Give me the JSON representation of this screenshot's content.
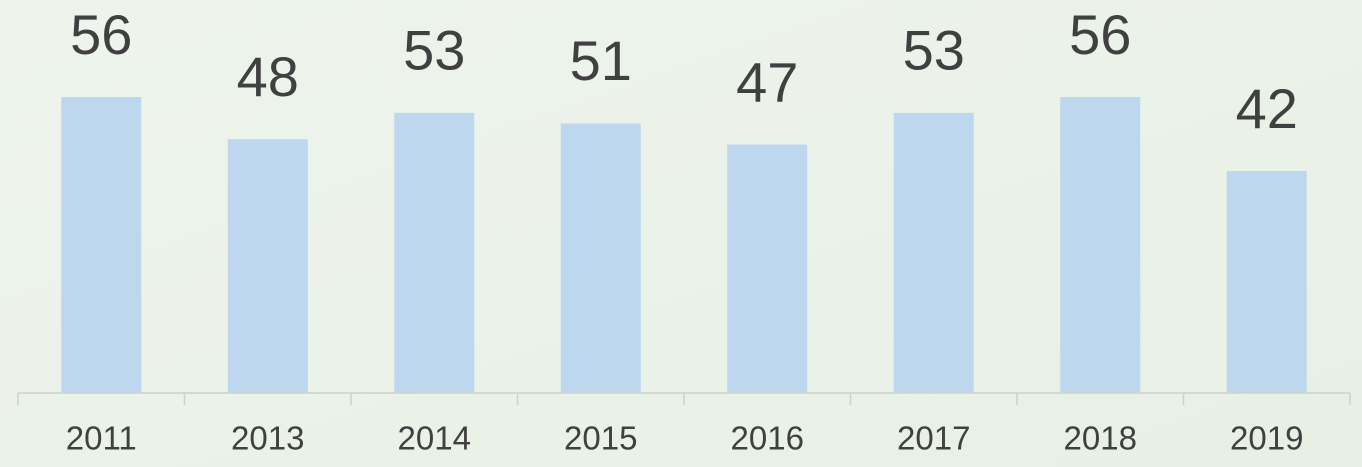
{
  "chart_data": {
    "type": "bar",
    "categories": [
      "2011",
      "2013",
      "2014",
      "2015",
      "2016",
      "2017",
      "2018",
      "2019"
    ],
    "values": [
      56,
      48,
      53,
      51,
      47,
      53,
      56,
      42
    ],
    "color": "#bdd7ee",
    "ylim": [
      0,
      70
    ]
  }
}
